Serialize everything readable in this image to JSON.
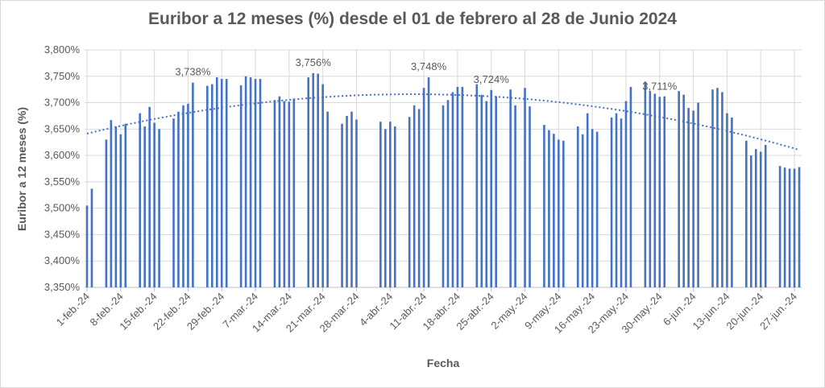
{
  "chart_data": {
    "type": "bar",
    "title": "Euribor a 12 meses (%) desde el 01 de febrero al 28 de Junio 2024",
    "xlabel": "Fecha",
    "ylabel": "Euribor a 12 meses (%)",
    "color": "#4472c4",
    "grid": true,
    "trendline": "polynomial",
    "x": [
      "2024-02-01",
      "2024-02-02",
      "2024-02-05",
      "2024-02-06",
      "2024-02-07",
      "2024-02-08",
      "2024-02-09",
      "2024-02-12",
      "2024-02-13",
      "2024-02-14",
      "2024-02-15",
      "2024-02-16",
      "2024-02-19",
      "2024-02-20",
      "2024-02-21",
      "2024-02-22",
      "2024-02-23",
      "2024-02-26",
      "2024-02-27",
      "2024-02-28",
      "2024-02-29",
      "2024-03-01",
      "2024-03-04",
      "2024-03-05",
      "2024-03-06",
      "2024-03-07",
      "2024-03-08",
      "2024-03-11",
      "2024-03-12",
      "2024-03-13",
      "2024-03-14",
      "2024-03-15",
      "2024-03-18",
      "2024-03-19",
      "2024-03-20",
      "2024-03-21",
      "2024-03-22",
      "2024-03-25",
      "2024-03-26",
      "2024-03-27",
      "2024-03-28",
      "2024-04-02",
      "2024-04-03",
      "2024-04-04",
      "2024-04-05",
      "2024-04-08",
      "2024-04-09",
      "2024-04-10",
      "2024-04-11",
      "2024-04-12",
      "2024-04-15",
      "2024-04-16",
      "2024-04-17",
      "2024-04-18",
      "2024-04-19",
      "2024-04-22",
      "2024-04-23",
      "2024-04-24",
      "2024-04-25",
      "2024-04-26",
      "2024-04-29",
      "2024-04-30",
      "2024-05-02",
      "2024-05-03",
      "2024-05-06",
      "2024-05-07",
      "2024-05-08",
      "2024-05-09",
      "2024-05-10",
      "2024-05-13",
      "2024-05-14",
      "2024-05-15",
      "2024-05-16",
      "2024-05-17",
      "2024-05-20",
      "2024-05-21",
      "2024-05-22",
      "2024-05-23",
      "2024-05-24",
      "2024-05-27",
      "2024-05-28",
      "2024-05-29",
      "2024-05-30",
      "2024-05-31",
      "2024-06-03",
      "2024-06-04",
      "2024-06-05",
      "2024-06-06",
      "2024-06-07",
      "2024-06-10",
      "2024-06-11",
      "2024-06-12",
      "2024-06-13",
      "2024-06-14",
      "2024-06-17",
      "2024-06-18",
      "2024-06-19",
      "2024-06-20",
      "2024-06-21",
      "2024-06-24",
      "2024-06-25",
      "2024-06-26",
      "2024-06-27",
      "2024-06-28"
    ],
    "values": [
      3.505,
      3.537,
      3.63,
      3.667,
      3.655,
      3.64,
      3.66,
      3.68,
      3.655,
      3.692,
      3.662,
      3.65,
      3.67,
      3.683,
      3.695,
      3.698,
      3.738,
      3.732,
      3.735,
      3.748,
      3.745,
      3.745,
      3.733,
      3.75,
      3.748,
      3.745,
      3.745,
      3.705,
      3.712,
      3.703,
      3.702,
      3.708,
      3.748,
      3.756,
      3.755,
      3.735,
      3.683,
      3.66,
      3.675,
      3.683,
      3.668,
      3.664,
      3.65,
      3.664,
      3.655,
      3.673,
      3.695,
      3.688,
      3.728,
      3.748,
      3.695,
      3.705,
      3.72,
      3.73,
      3.73,
      3.735,
      3.715,
      3.703,
      3.724,
      3.712,
      3.725,
      3.695,
      3.728,
      3.693,
      3.658,
      3.648,
      3.641,
      3.63,
      3.628,
      3.655,
      3.64,
      3.68,
      3.65,
      3.645,
      3.672,
      3.68,
      3.67,
      3.703,
      3.73,
      3.74,
      3.722,
      3.717,
      3.711,
      3.712,
      3.722,
      3.715,
      3.69,
      3.685,
      3.7,
      3.725,
      3.728,
      3.72,
      3.68,
      3.672,
      3.628,
      3.6,
      3.612,
      3.607,
      3.62,
      3.58,
      3.577,
      3.575,
      3.575,
      3.578
    ],
    "value_labels": [
      null,
      null,
      null,
      null,
      null,
      null,
      null,
      null,
      null,
      null,
      null,
      null,
      null,
      null,
      null,
      null,
      "3,738%",
      null,
      null,
      null,
      null,
      null,
      null,
      null,
      null,
      null,
      null,
      null,
      null,
      null,
      null,
      null,
      null,
      "3,756%",
      null,
      null,
      null,
      null,
      null,
      null,
      null,
      null,
      null,
      null,
      null,
      null,
      null,
      null,
      null,
      "3,748%",
      null,
      null,
      null,
      null,
      null,
      null,
      null,
      null,
      "3,724%",
      null,
      null,
      null,
      null,
      null,
      null,
      null,
      null,
      null,
      null,
      null,
      null,
      null,
      null,
      null,
      null,
      null,
      null,
      null,
      null,
      null,
      null,
      null,
      "3,711%",
      null,
      null,
      null,
      null,
      null,
      null,
      null,
      null,
      null,
      null,
      null,
      null,
      null,
      null,
      null,
      null,
      null,
      null,
      null,
      null,
      null
    ],
    "xlim": [
      "2024-02-01",
      "2024-06-28"
    ],
    "xticks": [
      {
        "value": "2024-02-01",
        "label": "1-feb.-24"
      },
      {
        "value": "2024-02-08",
        "label": "8-feb.-24"
      },
      {
        "value": "2024-02-15",
        "label": "15-feb.-24"
      },
      {
        "value": "2024-02-22",
        "label": "22-feb.-24"
      },
      {
        "value": "2024-02-29",
        "label": "29-feb.-24"
      },
      {
        "value": "2024-03-07",
        "label": "7-mar.-24"
      },
      {
        "value": "2024-03-14",
        "label": "14-mar.-24"
      },
      {
        "value": "2024-03-21",
        "label": "21-mar.-24"
      },
      {
        "value": "2024-03-28",
        "label": "28-mar.-24"
      },
      {
        "value": "2024-04-04",
        "label": "4-abr.-24"
      },
      {
        "value": "2024-04-11",
        "label": "11-abr.-24"
      },
      {
        "value": "2024-04-18",
        "label": "18-abr.-24"
      },
      {
        "value": "2024-04-25",
        "label": "25-abr.-24"
      },
      {
        "value": "2024-05-02",
        "label": "2-may.-24"
      },
      {
        "value": "2024-05-09",
        "label": "9-may.-24"
      },
      {
        "value": "2024-05-16",
        "label": "16-may.-24"
      },
      {
        "value": "2024-05-23",
        "label": "23-may.-24"
      },
      {
        "value": "2024-05-30",
        "label": "30-may.-24"
      },
      {
        "value": "2024-06-06",
        "label": "6-jun.-24"
      },
      {
        "value": "2024-06-13",
        "label": "13-jun.-24"
      },
      {
        "value": "2024-06-20",
        "label": "20-jun.-24"
      },
      {
        "value": "2024-06-27",
        "label": "27-jun.-24"
      }
    ],
    "ylim": [
      3.35,
      3.8
    ],
    "yticks": [
      {
        "value": 3.35,
        "label": "3,350%"
      },
      {
        "value": 3.4,
        "label": "3,400%"
      },
      {
        "value": 3.45,
        "label": "3,450%"
      },
      {
        "value": 3.5,
        "label": "3,500%"
      },
      {
        "value": 3.55,
        "label": "3,550%"
      },
      {
        "value": 3.6,
        "label": "3,600%"
      },
      {
        "value": 3.65,
        "label": "3,650%"
      },
      {
        "value": 3.7,
        "label": "3,700%"
      },
      {
        "value": 3.75,
        "label": "3,750%"
      },
      {
        "value": 3.8,
        "label": "3,800%"
      }
    ]
  }
}
